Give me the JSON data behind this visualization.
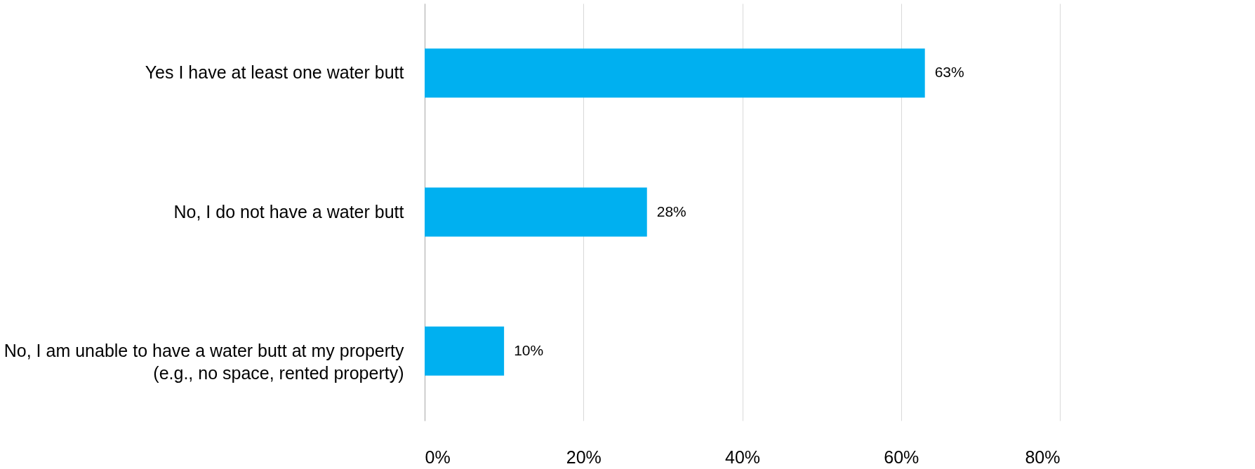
{
  "chart_data": {
    "type": "bar",
    "orientation": "horizontal",
    "categories": [
      "Yes I have at least one water butt",
      "No, I do not have a water butt",
      "No, I am unable to have a water butt at my property\n(e.g., no space, rented property)"
    ],
    "values": [
      63,
      28,
      10
    ],
    "value_labels": [
      "63%",
      "28%",
      "10%"
    ],
    "color": "#00b0f0",
    "xlim": [
      0,
      80
    ],
    "xticks": [
      {
        "value": 0,
        "label": "0%"
      },
      {
        "value": 20,
        "label": "20%"
      },
      {
        "value": 40,
        "label": "40%"
      },
      {
        "value": 60,
        "label": "60%"
      },
      {
        "value": 80,
        "label": "80%"
      }
    ],
    "grid": "x"
  }
}
